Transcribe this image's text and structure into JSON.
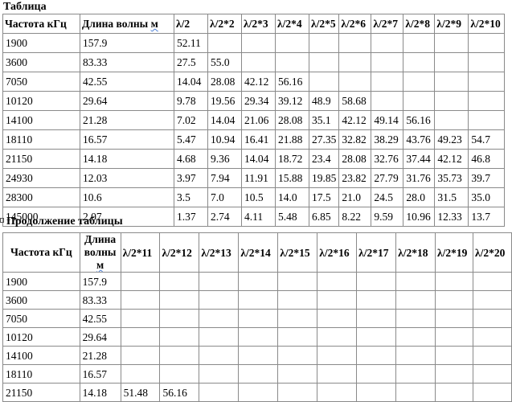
{
  "table1": {
    "caption": "Таблица",
    "headers": [
      "Частота кГц",
      "Длина волны м",
      "λ/2",
      "λ/2*2",
      "λ/2*3",
      "λ/2*4",
      "λ/2*5",
      "λ/2*6",
      "λ/2*7",
      "λ/2*8",
      "λ/2*9",
      "λ/2*10"
    ],
    "rows": [
      [
        "1900",
        "157.9",
        "52.11",
        "",
        "",
        "",
        "",
        "",
        "",
        "",
        "",
        ""
      ],
      [
        "3600",
        "83.33",
        "27.5",
        "55.0",
        "",
        "",
        "",
        "",
        "",
        "",
        "",
        ""
      ],
      [
        "7050",
        "42.55",
        "14.04",
        "28.08",
        "42.12",
        "56.16",
        "",
        "",
        "",
        "",
        "",
        ""
      ],
      [
        "10120",
        "29.64",
        "9.78",
        "19.56",
        "29.34",
        "39.12",
        "48.9",
        "58.68",
        "",
        "",
        "",
        ""
      ],
      [
        "14100",
        "21.28",
        "7.02",
        "14.04",
        "21.06",
        "28.08",
        "35.1",
        "42.12",
        "49.14",
        "56.16",
        "",
        ""
      ],
      [
        "18110",
        "16.57",
        "5.47",
        "10.94",
        "16.41",
        "21.88",
        "27.35",
        "32.82",
        "38.29",
        "43.76",
        "49.23",
        "54.7"
      ],
      [
        "21150",
        "14.18",
        "4.68",
        "9.36",
        "14.04",
        "18.72",
        "23.4",
        "28.08",
        "32.76",
        "37.44",
        "42.12",
        "46.8"
      ],
      [
        "24930",
        "12.03",
        "3.97",
        "7.94",
        "11.91",
        "15.88",
        "19.85",
        "23.82",
        "27.79",
        "31.76",
        "35.73",
        "39.7"
      ],
      [
        "28300",
        "10.6",
        "3.5",
        "7.0",
        "10.5",
        "14.0",
        "17.5",
        "21.0",
        "24.5",
        "28.0",
        "31.5",
        "35.0"
      ],
      [
        "145000",
        "2.07",
        "1.37",
        "2.74",
        "4.11",
        "5.48",
        "6.85",
        "8.22",
        "9.59",
        "10.96",
        "12.33",
        "13.7"
      ]
    ]
  },
  "table2": {
    "caption": "Продолжение таблицы",
    "headers": [
      "Частота кГц",
      "Длина волны м",
      "λ/2*11",
      "λ/2*12",
      "λ/2*13",
      "λ/2*14",
      "λ/2*15",
      "λ/2*16",
      "λ/2*17",
      "λ/2*18",
      "λ/2*19",
      "λ/2*20"
    ],
    "rows": [
      [
        "1900",
        "157.9",
        "",
        "",
        "",
        "",
        "",
        "",
        "",
        "",
        "",
        ""
      ],
      [
        "3600",
        "83.33",
        "",
        "",
        "",
        "",
        "",
        "",
        "",
        "",
        "",
        ""
      ],
      [
        "7050",
        "42.55",
        "",
        "",
        "",
        "",
        "",
        "",
        "",
        "",
        "",
        ""
      ],
      [
        "10120",
        "29.64",
        "",
        "",
        "",
        "",
        "",
        "",
        "",
        "",
        "",
        ""
      ],
      [
        "14100",
        "21.28",
        "",
        "",
        "",
        "",
        "",
        "",
        "",
        "",
        "",
        ""
      ],
      [
        "18110",
        "16.57",
        "",
        "",
        "",
        "",
        "",
        "",
        "",
        "",
        "",
        ""
      ],
      [
        "21150",
        "14.18",
        "51.48",
        "56.16",
        "",
        "",
        "",
        "",
        "",
        "",
        "",
        ""
      ]
    ]
  }
}
